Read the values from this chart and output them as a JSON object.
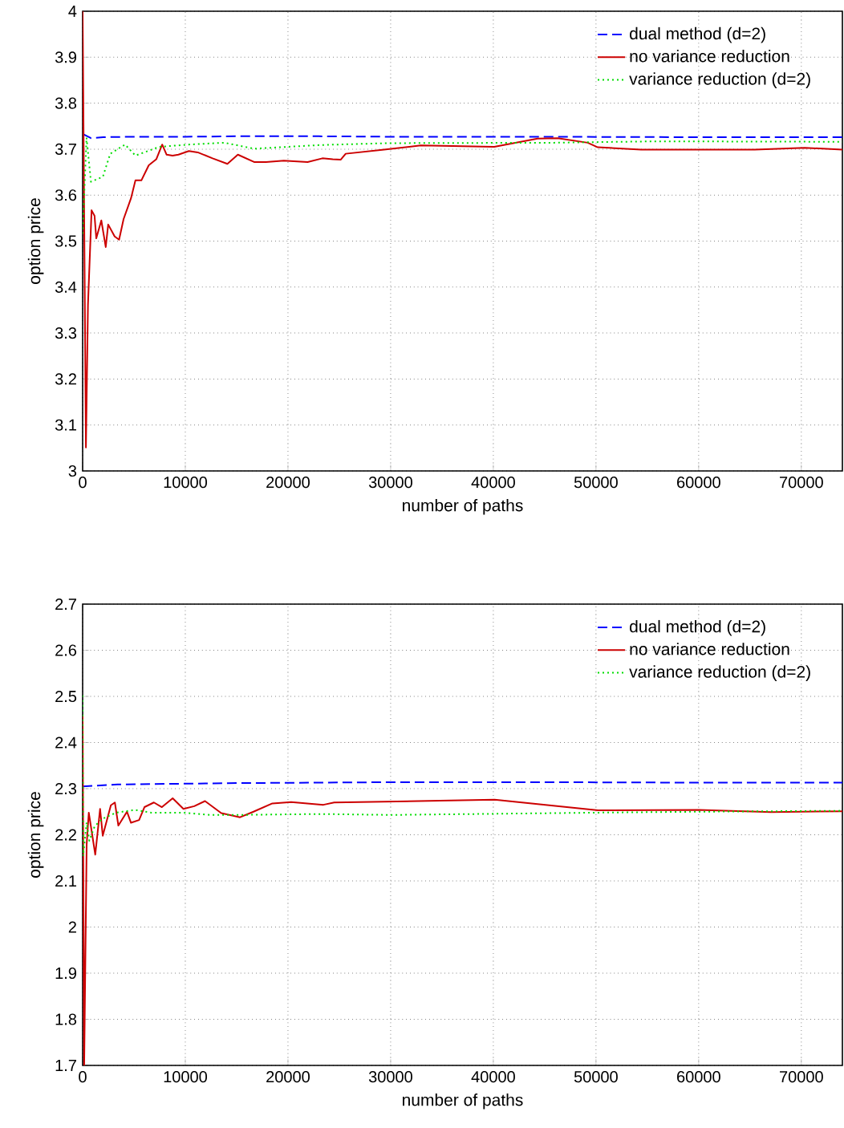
{
  "chart_data": [
    {
      "type": "line",
      "xlabel": "number of paths",
      "ylabel": "option price",
      "xlim": [
        0,
        74000
      ],
      "ylim": [
        3,
        4
      ],
      "xticks": [
        0,
        10000,
        20000,
        30000,
        40000,
        50000,
        60000,
        70000
      ],
      "yticks": [
        3,
        3.1,
        3.2,
        3.3,
        3.4,
        3.5,
        3.6,
        3.7,
        3.8,
        3.9,
        4
      ],
      "grid": true,
      "legend": "top right",
      "series": [
        {
          "name": "dual method (d=2)",
          "color": "#0000ff",
          "line_style": "dashed",
          "x": [
            0,
            810,
            2000,
            5000,
            10000,
            15000,
            23000,
            30000,
            45000,
            60000,
            74000
          ],
          "values": [
            3.733,
            3.724,
            3.726,
            3.727,
            3.727,
            3.728,
            3.728,
            3.727,
            3.727,
            3.726,
            3.726
          ]
        },
        {
          "name": "no variance reduction",
          "color": "#cc0000",
          "line_style": "solid",
          "x": [
            0,
            320,
            520,
            870,
            1160,
            1330,
            1820,
            2250,
            2490,
            3120,
            3550,
            3990,
            4710,
            5140,
            5720,
            6440,
            7170,
            7750,
            8180,
            8760,
            9330,
            10350,
            11210,
            12660,
            14100,
            15120,
            16700,
            17860,
            19600,
            21910,
            23350,
            24360,
            25130,
            25620,
            29360,
            32930,
            40090,
            44310,
            46260,
            49190,
            50170,
            54400,
            58950,
            65450,
            70330,
            74000
          ],
          "values": [
            4,
            3.051,
            3.361,
            3.567,
            3.555,
            3.506,
            3.545,
            3.487,
            3.536,
            3.51,
            3.503,
            3.548,
            3.593,
            3.632,
            3.632,
            3.665,
            3.678,
            3.71,
            3.688,
            3.686,
            3.688,
            3.696,
            3.693,
            3.68,
            3.668,
            3.688,
            3.672,
            3.672,
            3.675,
            3.672,
            3.68,
            3.678,
            3.677,
            3.69,
            3.699,
            3.708,
            3.705,
            3.723,
            3.724,
            3.714,
            3.704,
            3.699,
            3.699,
            3.699,
            3.703,
            3.699
          ]
        },
        {
          "name": "variance reduction (d=2)",
          "color": "#00dd00",
          "line_style": "dotted",
          "x": [
            0,
            380,
            810,
            1970,
            2690,
            4130,
            5140,
            7460,
            10350,
            13810,
            16700,
            23180,
            29680,
            45940,
            55700,
            74000
          ],
          "values": [
            3.516,
            3.725,
            3.629,
            3.64,
            3.69,
            3.71,
            3.686,
            3.705,
            3.71,
            3.714,
            3.701,
            3.709,
            3.713,
            3.714,
            3.717,
            3.716
          ]
        }
      ]
    },
    {
      "type": "line",
      "xlabel": "number of paths",
      "ylabel": "option price",
      "xlim": [
        0,
        74000
      ],
      "ylim": [
        1.7,
        2.7
      ],
      "xticks": [
        0,
        10000,
        20000,
        30000,
        40000,
        50000,
        60000,
        70000
      ],
      "yticks": [
        1.7,
        1.8,
        1.9,
        2,
        2.1,
        2.2,
        2.3,
        2.4,
        2.5,
        2.6,
        2.7
      ],
      "grid": true,
      "legend": "top right",
      "series": [
        {
          "name": "dual method (d=2)",
          "color": "#0000ff",
          "line_style": "dashed",
          "x": [
            0,
            3400,
            7000,
            15000,
            30000,
            45000,
            60000,
            74000
          ],
          "values": [
            2.305,
            2.309,
            2.31,
            2.312,
            2.314,
            2.314,
            2.313,
            2.313
          ]
        },
        {
          "name": "no variance reduction",
          "color": "#cc0000",
          "line_style": "solid",
          "x": [
            0,
            150,
            390,
            600,
            1230,
            1700,
            1960,
            2750,
            3140,
            3480,
            4320,
            4710,
            5500,
            6020,
            6940,
            7720,
            8770,
            9820,
            10870,
            11920,
            13500,
            15330,
            16640,
            18480,
            20310,
            23450,
            24500,
            40130,
            50200,
            60000,
            67060,
            74000
          ],
          "values": [
            2.459,
            1.7,
            2.178,
            2.248,
            2.157,
            2.256,
            2.198,
            2.264,
            2.27,
            2.22,
            2.25,
            2.226,
            2.232,
            2.26,
            2.27,
            2.26,
            2.279,
            2.256,
            2.262,
            2.273,
            2.247,
            2.238,
            2.25,
            2.268,
            2.271,
            2.265,
            2.27,
            2.276,
            2.253,
            2.254,
            2.249,
            2.251
          ]
        },
        {
          "name": "variance reduction (d=2)",
          "color": "#00dd00",
          "line_style": "dotted",
          "x": [
            0,
            50,
            390,
            650,
            1180,
            1960,
            3270,
            5100,
            6680,
            9820,
            12440,
            15060,
            23190,
            30020,
            50200,
            60000,
            74000
          ],
          "values": [
            2.502,
            2.154,
            2.227,
            2.187,
            2.219,
            2.235,
            2.248,
            2.254,
            2.248,
            2.248,
            2.243,
            2.243,
            2.245,
            2.243,
            2.248,
            2.25,
            2.252
          ]
        }
      ]
    }
  ]
}
